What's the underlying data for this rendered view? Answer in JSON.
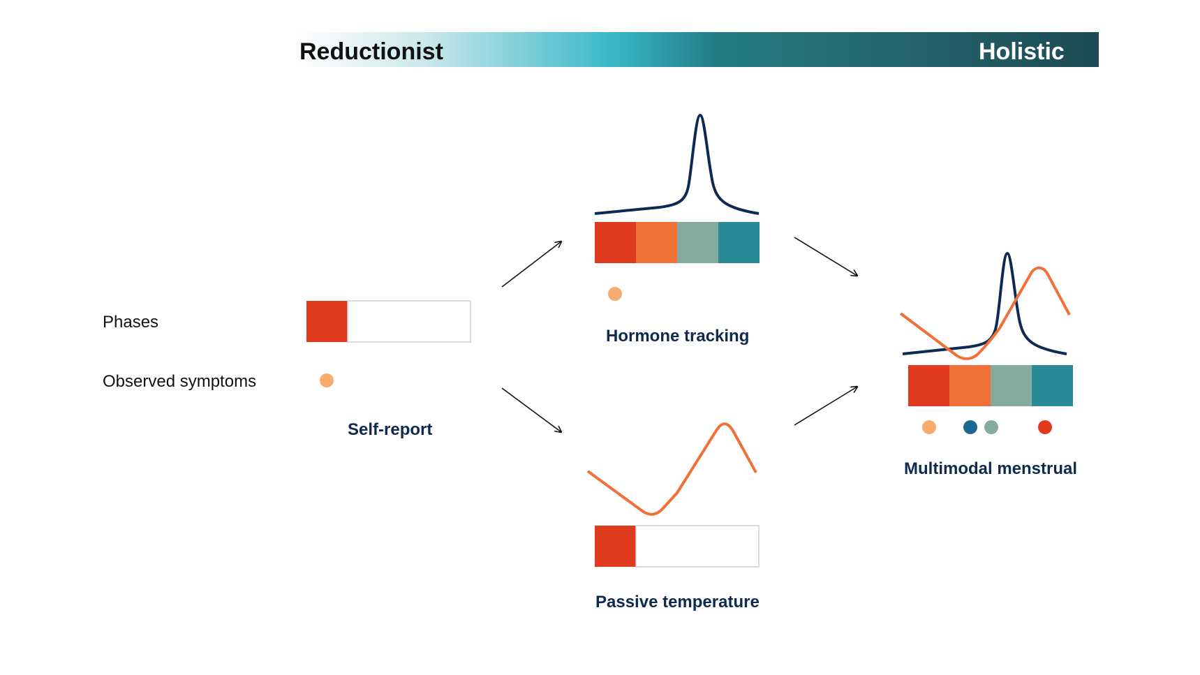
{
  "scale": {
    "left_label": "Reductionist",
    "right_label": "Holistic"
  },
  "row_labels": {
    "phases": "Phases",
    "symptoms": "Observed symptoms"
  },
  "captions": {
    "self_report": "Self-report",
    "hormone": "Hormone tracking",
    "temperature": "Passive temperature",
    "multimodal": "Multimodal menstrual"
  },
  "colors": {
    "phase_1": "#e03a1f",
    "phase_2": "#f07038",
    "phase_3": "#84aba0",
    "phase_4": "#2a8a98",
    "symptom_peach": "#f7ab6f",
    "symptom_blue": "#1d6890",
    "hormone_curve": "#0e2a54",
    "temperature_curve": "#f07038",
    "caption_text": "#0e2a4e"
  }
}
